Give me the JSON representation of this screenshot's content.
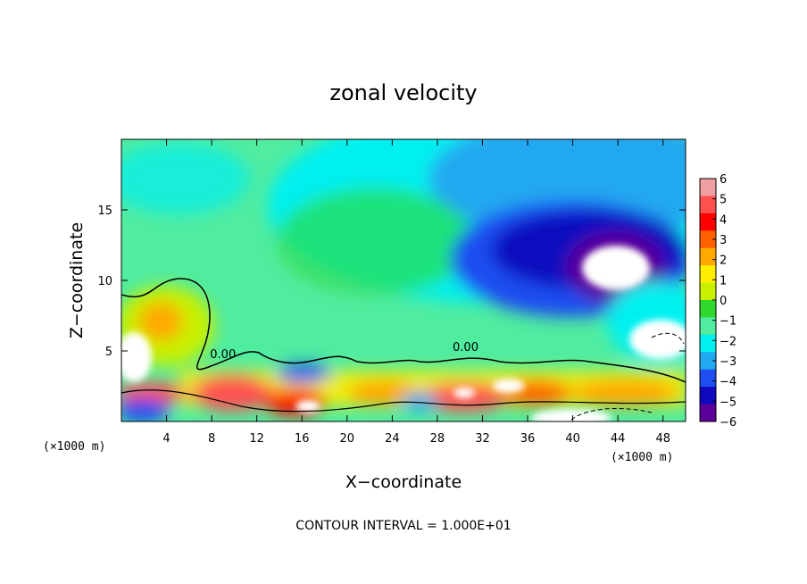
{
  "chart_data": {
    "type": "heatmap",
    "title": "zonal velocity",
    "xlabel": "X−coordinate",
    "ylabel": "Z−coordinate",
    "x_unit_left": "(×1000 m)",
    "x_unit_right": "(×1000 m)",
    "xlim": [
      0,
      50
    ],
    "ylim": [
      0,
      20
    ],
    "x_ticks": [
      4,
      8,
      12,
      16,
      20,
      24,
      28,
      32,
      36,
      40,
      44,
      48
    ],
    "x_tick_labels": [
      "4",
      "8",
      "12",
      "16",
      "20",
      "24",
      "28",
      "32",
      "36",
      "40",
      "44",
      "48"
    ],
    "y_ticks": [
      5,
      10,
      15
    ],
    "y_tick_labels": [
      "5",
      "10",
      "15"
    ],
    "colorbar": {
      "min": -6,
      "max": 6,
      "tick_values": [
        6,
        5,
        4,
        3,
        2,
        1,
        0,
        -1,
        -2,
        -3,
        -4,
        -5,
        -6
      ],
      "tick_labels": [
        "6",
        "5",
        "4",
        "3",
        "2",
        "1",
        "0",
        "−1",
        "−2",
        "−3",
        "−4",
        "−5",
        "−6"
      ],
      "colors": [
        "#f0a0a0",
        "#ff5050",
        "#ff0000",
        "#ff6000",
        "#ffa800",
        "#ffee00",
        "#c8f000",
        "#30d830",
        "#50eca0",
        "#00f0f0",
        "#20a8f0",
        "#1e4ef0",
        "#1008c0",
        "#5a0098"
      ]
    },
    "contour_labels": [
      {
        "text": "0.00",
        "x": 9,
        "z": 4.5
      },
      {
        "text": "0.00",
        "x": 30.5,
        "z": 5
      }
    ],
    "footnote": "CONTOUR INTERVAL = 1.000E+01"
  }
}
